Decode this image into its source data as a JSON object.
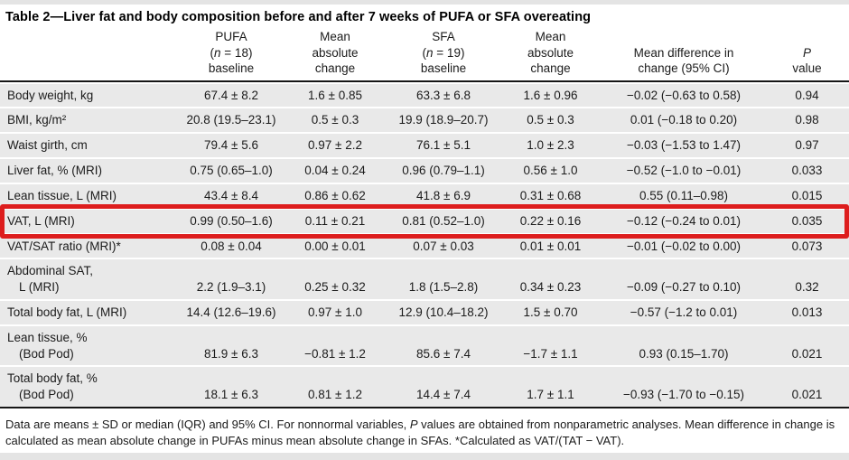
{
  "page": {
    "edge_strip_color": "#e4e4e4",
    "row_background": "#e9e9e9",
    "highlight_color": "#dd1d1d"
  },
  "table": {
    "title": "Table 2—Liver fat and body composition before and after 7 weeks of PUFA or SFA overeating",
    "columns": [
      {
        "id": "label",
        "lines": [
          ""
        ]
      },
      {
        "id": "pufa-baseline",
        "lines": [
          "PUFA",
          "(n = 18)",
          "baseline"
        ]
      },
      {
        "id": "pufa-mean-absolute-change",
        "lines": [
          "Mean",
          "absolute",
          "change"
        ]
      },
      {
        "id": "sfa-baseline",
        "lines": [
          "SFA",
          "(n = 19)",
          "baseline"
        ]
      },
      {
        "id": "sfa-mean-absolute-change",
        "lines": [
          "Mean",
          "absolute",
          "change"
        ]
      },
      {
        "id": "mean-difference",
        "lines": [
          "Mean difference in",
          "change (95% CI)"
        ]
      },
      {
        "id": "p-value",
        "lines": [
          "P",
          "value"
        ]
      }
    ],
    "rows": [
      {
        "label": "Body weight, kg",
        "values": [
          "67.4 ± 8.2",
          "1.6 ± 0.85",
          "63.3 ± 6.8",
          "1.6 ± 0.96",
          "−0.02 (−0.63 to 0.58)",
          "0.94"
        ]
      },
      {
        "label": "BMI, kg/m²",
        "values": [
          "20.8 (19.5–23.1)",
          "0.5 ± 0.3",
          "19.9 (18.9–20.7)",
          "0.5 ± 0.3",
          "0.01 (−0.18 to 0.20)",
          "0.98"
        ]
      },
      {
        "label": "Waist girth, cm",
        "values": [
          "79.4 ± 5.6",
          "0.97 ± 2.2",
          "76.1 ± 5.1",
          "1.0 ± 2.3",
          "−0.03 (−1.53 to 1.47)",
          "0.97"
        ]
      },
      {
        "label": "Liver fat, % (MRI)",
        "values": [
          "0.75 (0.65–1.0)",
          "0.04 ± 0.24",
          "0.96 (0.79–1.1)",
          "0.56 ± 1.0",
          "−0.52 (−1.0 to −0.01)",
          "0.033"
        ]
      },
      {
        "label": "Lean tissue, L (MRI)",
        "values": [
          "43.4 ± 8.4",
          "0.86 ± 0.62",
          "41.8 ± 6.9",
          "0.31 ± 0.68",
          "0.55 (0.11–0.98)",
          "0.015"
        ]
      },
      {
        "label": "VAT, L (MRI)",
        "highlighted": true,
        "values": [
          "0.99 (0.50–1.6)",
          "0.11 ± 0.21",
          "0.81 (0.52–1.0)",
          "0.22 ± 0.16",
          "−0.12 (−0.24 to 0.01)",
          "0.035"
        ]
      },
      {
        "label": "VAT/SAT ratio (MRI)*",
        "values": [
          "0.08 ± 0.04",
          "0.00 ± 0.01",
          "0.07 ± 0.03",
          "0.01 ± 0.01",
          "−0.01 (−0.02 to 0.00)",
          "0.073"
        ]
      },
      {
        "label": "Abdominal SAT,",
        "label_line2": "L (MRI)",
        "values": [
          "2.2 (1.9–3.1)",
          "0.25 ± 0.32",
          "1.8 (1.5–2.8)",
          "0.34 ± 0.23",
          "−0.09 (−0.27 to 0.10)",
          "0.32"
        ]
      },
      {
        "label": "Total body fat, L (MRI)",
        "values": [
          "14.4 (12.6–19.6)",
          "0.97 ± 1.0",
          "12.9 (10.4–18.2)",
          "1.5 ± 0.70",
          "−0.57 (−1.2 to 0.01)",
          "0.013"
        ]
      },
      {
        "label": "Lean tissue, %",
        "label_line2": "(Bod Pod)",
        "values": [
          "81.9 ± 6.3",
          "−0.81 ± 1.2",
          "85.6 ± 7.4",
          "−1.7 ± 1.1",
          "0.93 (0.15–1.70)",
          "0.021"
        ]
      },
      {
        "label": "Total body fat, %",
        "label_line2": "(Bod Pod)",
        "values": [
          "18.1 ± 6.3",
          "0.81 ± 1.2",
          "14.4 ± 7.4",
          "1.7 ± 1.1",
          "−0.93 (−1.70 to −0.15)",
          "0.021"
        ]
      }
    ],
    "footnote": "Data are means ± SD or median (IQR) and 95% CI. For nonnormal variables, P values are obtained from nonparametric analyses. Mean difference in change is calculated as mean absolute change in PUFAs minus mean absolute change in SFAs. *Calculated as VAT/(TAT − VAT)."
  }
}
